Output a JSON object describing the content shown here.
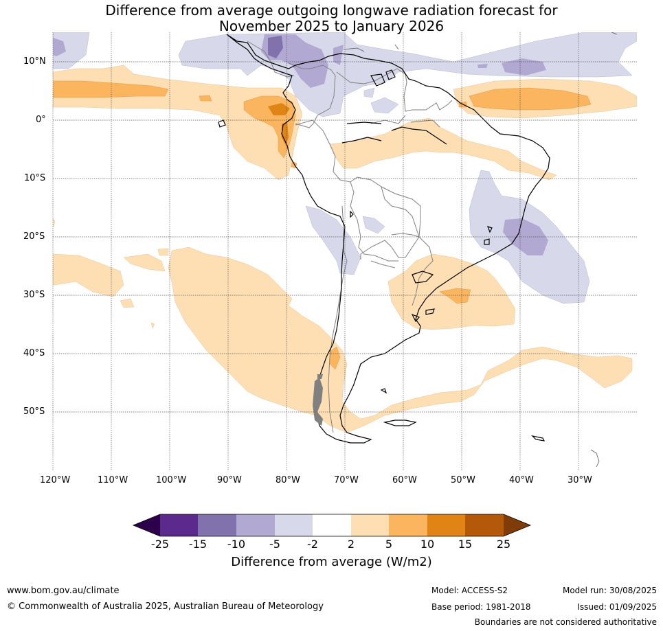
{
  "title": {
    "line1": "Difference from average outgoing longwave radiation forecast for",
    "line2": "November 2025 to January 2026"
  },
  "map": {
    "lat_labels": [
      "10°N",
      "0°",
      "10°S",
      "20°S",
      "30°S",
      "40°S",
      "50°S"
    ],
    "lon_labels": [
      "120°W",
      "110°W",
      "100°W",
      "90°W",
      "80°W",
      "70°W",
      "60°W",
      "50°W",
      "40°W",
      "30°W"
    ]
  },
  "colorbar": {
    "title": "Difference from average (W/m2)",
    "tick_labels": [
      "-25",
      "-15",
      "-10",
      "-5",
      "-2",
      "2",
      "5",
      "10",
      "15",
      "25"
    ],
    "colors": [
      "#2d004b",
      "#5c2a8c",
      "#8172ad",
      "#b1a9d2",
      "#d8d8eb",
      "#ffffff",
      "#fddfb3",
      "#fbb55f",
      "#e08515",
      "#b45909",
      "#7f3b08"
    ]
  },
  "footer": {
    "website": "www.bom.gov.au/climate",
    "copyright": "© Commonwealth of Australia 2025, Australian Bureau of Meteorology",
    "model": "Model: ACCESS-S2",
    "base_period": "Base period: 1981-2018",
    "model_run": "Model run: 30/08/2025",
    "issued": "Issued: 01/09/2025",
    "disclaimer": "Boundaries are not considered authoritative"
  }
}
